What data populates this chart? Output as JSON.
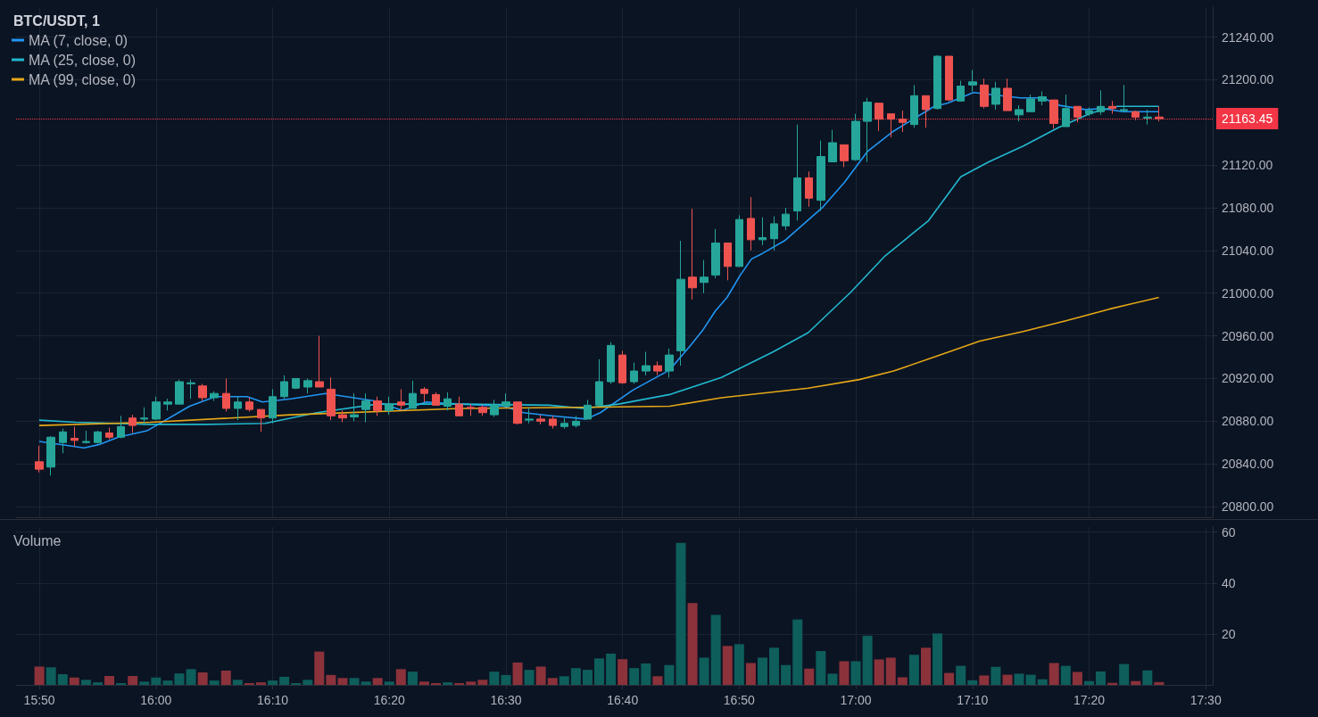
{
  "chart_data": [
    {
      "type": "candlestick",
      "title": "BTC/USDT, 1",
      "x": [
        15.8333,
        15.85,
        15.8667,
        15.8833,
        15.9,
        15.9167,
        15.9333,
        15.95,
        15.9667,
        15.9833,
        16,
        16.0167,
        16.0333,
        16.05,
        16.0667,
        16.0833,
        16.1,
        16.1167,
        16.1333,
        16.15,
        16.1667,
        16.1833,
        16.2,
        16.2167,
        16.2333,
        16.25,
        16.2667,
        16.2833,
        16.3,
        16.3167,
        16.3333,
        16.35,
        16.3667,
        16.3833,
        16.4,
        16.4167,
        16.4333,
        16.45,
        16.4667,
        16.4833,
        16.5,
        16.5167,
        16.5333,
        16.55,
        16.5667,
        16.5833,
        16.6,
        16.6167,
        16.6333,
        16.65,
        16.6667,
        16.6833,
        16.7,
        16.7167,
        16.7333,
        16.75,
        16.7667,
        16.7833,
        16.8,
        16.8167,
        16.8333,
        16.85,
        16.8667,
        16.8833,
        16.9,
        16.9167,
        16.9333,
        16.95,
        16.9667,
        16.9833,
        17,
        17.0167,
        17.0333,
        17.05,
        17.0667,
        17.0833,
        17.1,
        17.1167,
        17.1333,
        17.15,
        17.1667,
        17.1833,
        17.2,
        17.2167,
        17.2333,
        17.25,
        17.2667,
        17.2833,
        17.3,
        17.3167,
        17.3333,
        17.35,
        17.3667,
        17.3833,
        17.4,
        17.4167,
        17.4333
      ],
      "ohlc": [
        [
          20842,
          20857,
          20832,
          20835
        ],
        [
          20837,
          20866,
          20829,
          20865
        ],
        [
          20860,
          20873,
          20850,
          20870
        ],
        [
          20864,
          20875,
          20856,
          20862
        ],
        [
          20860,
          20871,
          20859,
          20861
        ],
        [
          20860,
          20871,
          20859,
          20870
        ],
        [
          20869,
          20874,
          20863,
          20865
        ],
        [
          20865,
          20885,
          20864,
          20875
        ],
        [
          20883,
          20886,
          20869,
          20876
        ],
        [
          20882,
          20893,
          20876,
          20883
        ],
        [
          20882,
          20903,
          20881,
          20898
        ],
        [
          20896,
          20901,
          20890,
          20898
        ],
        [
          20896,
          20919,
          20896,
          20917
        ],
        [
          20915,
          20919,
          20901,
          20916
        ],
        [
          20913,
          20915,
          20899,
          20902
        ],
        [
          20902,
          20908,
          20899,
          20906
        ],
        [
          20906,
          20920,
          20889,
          20892
        ],
        [
          20892,
          20903,
          20881,
          20898
        ],
        [
          20898,
          20902,
          20889,
          20891
        ],
        [
          20891,
          20891,
          20870,
          20883
        ],
        [
          20883,
          20910,
          20878,
          20903
        ],
        [
          20903,
          20923,
          20901,
          20917
        ],
        [
          20911,
          20920,
          20910,
          20920
        ],
        [
          20912,
          20920,
          20906,
          20918
        ],
        [
          20917,
          20960,
          20912,
          20912
        ],
        [
          20910,
          20921,
          20881,
          20885
        ],
        [
          20886,
          20890,
          20879,
          20883
        ],
        [
          20884,
          20906,
          20880,
          20886
        ],
        [
          20891,
          20906,
          20879,
          20899
        ],
        [
          20899,
          20903,
          20885,
          20890
        ],
        [
          20890,
          20903,
          20886,
          20896
        ],
        [
          20898,
          20910,
          20890,
          20895
        ],
        [
          20892,
          20918,
          20892,
          20906
        ],
        [
          20910,
          20912,
          20898,
          20906
        ],
        [
          20905,
          20907,
          20895,
          20895
        ],
        [
          20894,
          20907,
          20890,
          20901
        ],
        [
          20896,
          20903,
          20885,
          20885
        ],
        [
          20893,
          20896,
          20885,
          20892
        ],
        [
          20893,
          20895,
          20885,
          20888
        ],
        [
          20886,
          20900,
          20884,
          20895
        ],
        [
          20894,
          20906,
          20894,
          20898
        ],
        [
          20898,
          20898,
          20877,
          20878
        ],
        [
          20881,
          20893,
          20878,
          20882
        ],
        [
          20882,
          20886,
          20877,
          20880
        ],
        [
          20882,
          20885,
          20873,
          20876
        ],
        [
          20875,
          20883,
          20873,
          20878
        ],
        [
          20876,
          20885,
          20874,
          20880
        ],
        [
          20882,
          20900,
          20882,
          20895
        ],
        [
          20895,
          20938,
          20895,
          20917
        ],
        [
          20917,
          20954,
          20915,
          20951
        ],
        [
          20942,
          20946,
          20915,
          20916
        ],
        [
          20917,
          20935,
          20915,
          20927
        ],
        [
          20927,
          20945,
          20923,
          20932
        ],
        [
          20932,
          20936,
          20923,
          20927
        ],
        [
          20927,
          20948,
          20921,
          20942
        ],
        [
          20946,
          21049,
          20932,
          21013
        ],
        [
          21015,
          21079,
          20994,
          21005
        ],
        [
          21010,
          21031,
          21000,
          21015
        ],
        [
          21017,
          21060,
          21014,
          21047
        ],
        [
          21047,
          21047,
          21012,
          21025
        ],
        [
          21025,
          21073,
          21025,
          21069
        ],
        [
          21070,
          21090,
          21040,
          21050
        ],
        [
          21050,
          21071,
          21045,
          21052
        ],
        [
          21051,
          21072,
          21040,
          21065
        ],
        [
          21063,
          21080,
          21059,
          21074
        ],
        [
          21077,
          21158,
          21068,
          21108
        ],
        [
          21108,
          21114,
          21081,
          21089
        ],
        [
          21087,
          21143,
          21077,
          21128
        ],
        [
          21123,
          21153,
          21123,
          21141
        ],
        [
          21139,
          21139,
          21118,
          21124
        ],
        [
          21125,
          21168,
          21124,
          21161
        ],
        [
          21161,
          21183,
          21123,
          21179
        ],
        [
          21178,
          21178,
          21152,
          21163
        ],
        [
          21168,
          21168,
          21146,
          21163
        ],
        [
          21163,
          21171,
          21151,
          21160
        ],
        [
          21158,
          21195,
          21155,
          21185
        ],
        [
          21185,
          21185,
          21155,
          21172
        ],
        [
          21173,
          21223,
          21172,
          21222
        ],
        [
          21222,
          21222,
          21180,
          21181
        ],
        [
          21180,
          21199,
          21180,
          21194
        ],
        [
          21195,
          21209,
          21189,
          21198
        ],
        [
          21195,
          21201,
          21173,
          21175
        ],
        [
          21177,
          21198,
          21172,
          21192
        ],
        [
          21192,
          21201,
          21171,
          21171
        ],
        [
          21167,
          21176,
          21161,
          21172
        ],
        [
          21170,
          21186,
          21170,
          21182
        ],
        [
          21180,
          21189,
          21176,
          21184
        ],
        [
          21181,
          21181,
          21154,
          21159
        ],
        [
          21156,
          21186,
          21156,
          21173
        ],
        [
          21175,
          21175,
          21160,
          21165
        ],
        [
          21168,
          21174,
          21166,
          21171
        ],
        [
          21170,
          21190,
          21167,
          21175
        ],
        [
          21175,
          21180,
          21168,
          21173
        ],
        [
          21171,
          21195,
          21170,
          21172
        ],
        [
          21170,
          21171,
          21162,
          21165
        ],
        [
          21164,
          21172,
          21158,
          21165
        ],
        [
          21165,
          21175,
          21161,
          21163.45
        ]
      ],
      "series": [
        {
          "name": "MA (7, close, 0)",
          "type": "line",
          "color": "#2196f3",
          "x": [
            15.833,
            15.897,
            15.918,
            15.946,
            15.987,
            16.048,
            16.085,
            16.13,
            16.152,
            16.193,
            16.242,
            16.312,
            16.352,
            16.386,
            16.435,
            16.497,
            16.525,
            16.565,
            16.614,
            16.635,
            16.681,
            16.734,
            16.765,
            16.781,
            16.799,
            16.816,
            16.835,
            16.851,
            16.866,
            16.898,
            16.952,
            16.984,
            17.017,
            17.052,
            17.087,
            17.112,
            17.131,
            17.168,
            17.235,
            17.267,
            17.291,
            17.328,
            17.353,
            17.382,
            17.433
          ],
          "values": [
            20861,
            20855,
            20858,
            20865,
            20871,
            20894,
            20903,
            20903,
            20898,
            20901,
            20906,
            20899,
            20890,
            20898,
            20896,
            20894,
            20888,
            20885,
            20882,
            20888,
            20909,
            20928,
            20952,
            20965,
            20983,
            20996,
            21017,
            21032,
            21037,
            21049,
            21080,
            21104,
            21133,
            21151,
            21165,
            21175,
            21178,
            21188,
            21183,
            21183,
            21176,
            21172,
            21173,
            21170,
            21170
          ]
        },
        {
          "name": "MA (25, close, 0)",
          "type": "line",
          "color": "#22b8cf",
          "x": [
            15.833,
            15.885,
            15.992,
            16.07,
            16.156,
            16.23,
            16.316,
            16.439,
            16.562,
            16.611,
            16.661,
            16.734,
            16.808,
            16.882,
            16.932,
            16.993,
            17.042,
            17.104,
            17.15,
            17.19,
            17.24,
            17.289,
            17.337,
            17.374,
            17.433
          ],
          "values": [
            20881,
            20879,
            20877,
            20877,
            20878,
            20888,
            20896,
            20896,
            20895,
            20892,
            20896,
            20905,
            20921,
            20945,
            20963,
            21001,
            21035,
            21068,
            21109,
            21123,
            21138,
            21155,
            21169,
            21175,
            21175
          ]
        },
        {
          "name": "MA (99, close, 0)",
          "type": "line",
          "color": "#e6a817",
          "x": [
            15.833,
            15.992,
            16.193,
            16.439,
            16.611,
            16.734,
            16.808,
            16.932,
            17.005,
            17.054,
            17.116,
            17.177,
            17.239,
            17.3,
            17.362,
            17.433
          ],
          "values": [
            20876,
            20879,
            20886,
            20892,
            20893,
            20894,
            20902,
            20911,
            20919,
            20927,
            20941,
            20955,
            20964,
            20974,
            20985,
            20996
          ]
        }
      ],
      "xlim": [
        15.8,
        17.51
      ],
      "xticks": [
        {
          "value": 15.8333,
          "label": null
        },
        {
          "value": 16,
          "label": null
        },
        {
          "value": 16.1667,
          "label": null
        },
        {
          "value": 16.3333,
          "label": null
        },
        {
          "value": 16.5,
          "label": null
        },
        {
          "value": 16.6667,
          "label": null
        },
        {
          "value": 16.8333,
          "label": null
        },
        {
          "value": 17,
          "label": null
        },
        {
          "value": 17.1667,
          "label": null
        },
        {
          "value": 17.3333,
          "label": null
        },
        {
          "value": 17.5,
          "label": null
        }
      ],
      "ylim": [
        20790,
        21268
      ],
      "yticks": [
        {
          "value": 20800,
          "label": "20800.00"
        },
        {
          "value": 20840,
          "label": "20840.00"
        },
        {
          "value": 20880,
          "label": "20880.00"
        },
        {
          "value": 20920,
          "label": "20920.00"
        },
        {
          "value": 20960,
          "label": "20960.00"
        },
        {
          "value": 21000,
          "label": "21000.00"
        },
        {
          "value": 21040,
          "label": "21040.00"
        },
        {
          "value": 21080,
          "label": "21080.00"
        },
        {
          "value": 21120,
          "label": "21120.00"
        },
        {
          "value": 21200,
          "label": "21200.00"
        },
        {
          "value": 21240,
          "label": "21240.00"
        }
      ],
      "ref_lines": [
        {
          "axis": "y",
          "value": 21163.45,
          "label": "21163.45",
          "color": "#f23645",
          "line_style": "dotted"
        }
      ],
      "grid": true,
      "legend": "top left",
      "tick_labels": "y"
    },
    {
      "type": "bar",
      "title": "Volume",
      "x": [
        15.8333,
        15.85,
        15.8667,
        15.8833,
        15.9,
        15.9167,
        15.9333,
        15.95,
        15.9667,
        15.9833,
        16,
        16.0167,
        16.0333,
        16.05,
        16.0667,
        16.0833,
        16.1,
        16.1167,
        16.1333,
        16.15,
        16.1667,
        16.1833,
        16.2,
        16.2167,
        16.2333,
        16.25,
        16.2667,
        16.2833,
        16.3,
        16.3167,
        16.3333,
        16.35,
        16.3667,
        16.3833,
        16.4,
        16.4167,
        16.4333,
        16.45,
        16.4667,
        16.4833,
        16.5,
        16.5167,
        16.5333,
        16.55,
        16.5667,
        16.5833,
        16.6,
        16.6167,
        16.6333,
        16.65,
        16.6667,
        16.6833,
        16.7,
        16.7167,
        16.7333,
        16.75,
        16.7667,
        16.7833,
        16.8,
        16.8167,
        16.8333,
        16.85,
        16.8667,
        16.8833,
        16.9,
        16.9167,
        16.9333,
        16.95,
        16.9667,
        16.9833,
        17,
        17.0167,
        17.0333,
        17.05,
        17.0667,
        17.0833,
        17.1,
        17.1167,
        17.1333,
        17.15,
        17.1667,
        17.1833,
        17.2,
        17.2167,
        17.2333,
        17.25,
        17.2667,
        17.2833,
        17.3,
        17.3167,
        17.3333,
        17.35,
        17.3667,
        17.3833,
        17.4,
        17.4167,
        17.4333
      ],
      "values": [
        7.2,
        6.9,
        4.2,
        2.9,
        2.0,
        1.0,
        3.5,
        0.7,
        3.5,
        1.3,
        2.9,
        1.7,
        4.5,
        6.2,
        4.9,
        1.7,
        5.6,
        2.0,
        0.7,
        1.0,
        1.7,
        3.2,
        0.7,
        2.0,
        13.1,
        3.9,
        2.7,
        2.7,
        1.3,
        2.7,
        1.3,
        6.2,
        5.2,
        1.3,
        0.7,
        1.0,
        0.7,
        1.3,
        2.0,
        5.2,
        3.9,
        8.8,
        5.9,
        7.2,
        2.7,
        3.4,
        6.6,
        5.9,
        10.4,
        12.3,
        10.1,
        6.6,
        8.4,
        3.4,
        7.8,
        55.8,
        32.1,
        10.7,
        27.5,
        15.3,
        16.0,
        8.6,
        10.7,
        14.6,
        7.8,
        25.7,
        6.4,
        13.3,
        4.4,
        9.3,
        9.3,
        19.3,
        10.0,
        10.7,
        3.0,
        11.8,
        14.6,
        20.2,
        4.7,
        7.5,
        1.8,
        3.7,
        7.1,
        4.0,
        4.4,
        4.0,
        2.2,
        8.6,
        7.5,
        5.1,
        1.5,
        5.3,
        0.8,
        8.2,
        1.5,
        5.7,
        1.1
      ],
      "colors": [
        "#8b323b",
        "#0e5e5c",
        "#0e5e5c",
        "#8b323b",
        "#0e5e5c",
        "#0e5e5c",
        "#8b323b",
        "#0e5e5c",
        "#8b323b",
        "#0e5e5c",
        "#0e5e5c",
        "#0e5e5c",
        "#0e5e5c",
        "#0e5e5c",
        "#8b323b",
        "#0e5e5c",
        "#8b323b",
        "#0e5e5c",
        "#8b323b",
        "#8b323b",
        "#0e5e5c",
        "#0e5e5c",
        "#0e5e5c",
        "#0e5e5c",
        "#8b323b",
        "#8b323b",
        "#8b323b",
        "#0e5e5c",
        "#0e5e5c",
        "#8b323b",
        "#0e5e5c",
        "#8b323b",
        "#0e5e5c",
        "#8b323b",
        "#8b323b",
        "#0e5e5c",
        "#8b323b",
        "#8b323b",
        "#8b323b",
        "#0e5e5c",
        "#0e5e5c",
        "#8b323b",
        "#0e5e5c",
        "#8b323b",
        "#8b323b",
        "#0e5e5c",
        "#0e5e5c",
        "#0e5e5c",
        "#0e5e5c",
        "#0e5e5c",
        "#8b323b",
        "#0e5e5c",
        "#0e5e5c",
        "#8b323b",
        "#0e5e5c",
        "#0e5e5c",
        "#8b323b",
        "#0e5e5c",
        "#0e5e5c",
        "#8b323b",
        "#0e5e5c",
        "#8b323b",
        "#0e5e5c",
        "#0e5e5c",
        "#0e5e5c",
        "#0e5e5c",
        "#8b323b",
        "#0e5e5c",
        "#0e5e5c",
        "#8b323b",
        "#0e5e5c",
        "#0e5e5c",
        "#8b323b",
        "#8b323b",
        "#8b323b",
        "#0e5e5c",
        "#8b323b",
        "#0e5e5c",
        "#8b323b",
        "#0e5e5c",
        "#0e5e5c",
        "#8b323b",
        "#0e5e5c",
        "#8b323b",
        "#0e5e5c",
        "#0e5e5c",
        "#0e5e5c",
        "#8b323b",
        "#0e5e5c",
        "#8b323b",
        "#0e5e5c",
        "#0e5e5c",
        "#8b323b",
        "#0e5e5c",
        "#8b323b",
        "#0e5e5c",
        "#8b323b"
      ],
      "xlim": [
        15.8,
        17.51
      ],
      "xticks": [
        {
          "value": 15.8333,
          "label": "15:50"
        },
        {
          "value": 16,
          "label": "16:00"
        },
        {
          "value": 16.1667,
          "label": "16:10"
        },
        {
          "value": 16.3333,
          "label": "16:20"
        },
        {
          "value": 16.5,
          "label": "16:30"
        },
        {
          "value": 16.6667,
          "label": "16:40"
        },
        {
          "value": 16.8333,
          "label": "16:50"
        },
        {
          "value": 17,
          "label": "17:00"
        },
        {
          "value": 17.1667,
          "label": "17:10"
        },
        {
          "value": 17.3333,
          "label": "17:20"
        },
        {
          "value": 17.5,
          "label": "17:30"
        }
      ],
      "ylim": [
        0,
        62
      ],
      "yticks": [
        20,
        40,
        60
      ],
      "grid": true
    }
  ]
}
